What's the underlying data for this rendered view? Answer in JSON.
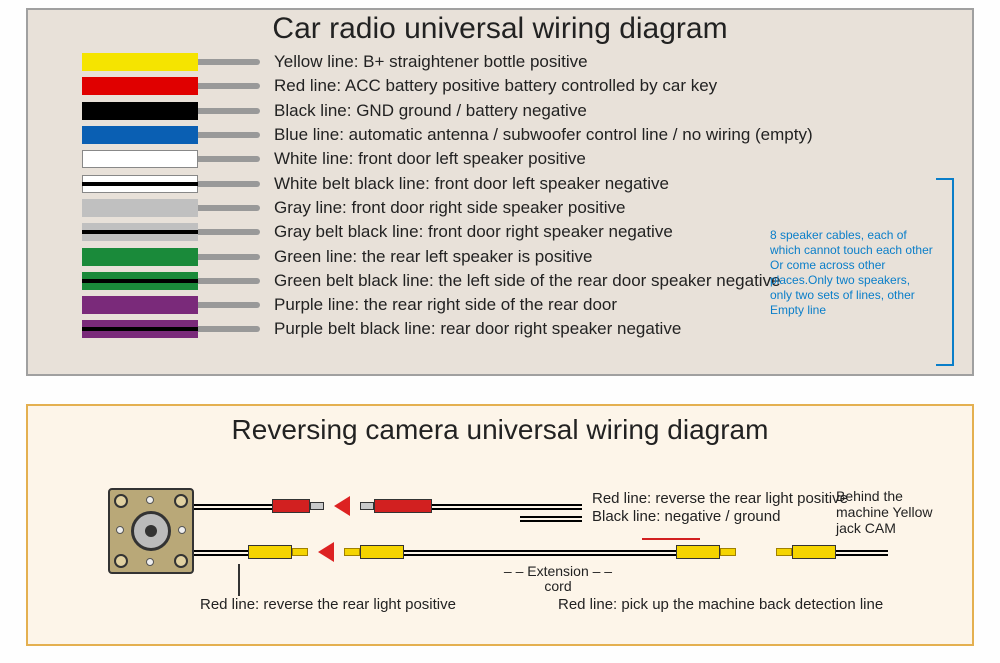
{
  "top": {
    "title": "Car radio universal wiring diagram",
    "border_color": "#a0a0a0",
    "background_color": "#e8e1d9",
    "wires": [
      {
        "color": "#f5e400",
        "stripe": false,
        "label": "Yellow line: B+ straightener bottle positive"
      },
      {
        "color": "#e00000",
        "stripe": false,
        "label": "Red line: ACC battery positive battery controlled by car key"
      },
      {
        "color": "#000000",
        "stripe": false,
        "label": "Black line: GND ground / battery negative"
      },
      {
        "color": "#0a5fb3",
        "stripe": false,
        "label": "Blue line: automatic antenna / subwoofer control line / no wiring (empty)"
      },
      {
        "color": "#ffffff",
        "stripe": false,
        "label": "White line: front door left speaker positive"
      },
      {
        "color": "#ffffff",
        "stripe": true,
        "label": "White belt black line: front door left speaker negative"
      },
      {
        "color": "#c0c0c0",
        "stripe": false,
        "label": "Gray line: front door right side speaker positive"
      },
      {
        "color": "#c0c0c0",
        "stripe": true,
        "label": "Gray belt black line: front door right speaker negative"
      },
      {
        "color": "#1a8a3a",
        "stripe": false,
        "label": "Green line: the rear left speaker is positive"
      },
      {
        "color": "#1a8a3a",
        "stripe": true,
        "label": "Green belt black line: the left side of the rear door speaker negative"
      },
      {
        "color": "#7a2a7a",
        "stripe": false,
        "label": "Purple line: the rear right side of the rear door"
      },
      {
        "color": "#7a2a7a",
        "stripe": true,
        "label": "Purple belt black line: rear door right speaker negative"
      }
    ],
    "note": "8 speaker cables, each of which cannot  touch each other Or come across other places.Only two speakers, only two sets of lines, other Empty line",
    "note_color": "#0a7ec9"
  },
  "bottom": {
    "title": "Reversing camera universal wiring diagram",
    "border_color": "#e4b050",
    "background_color": "#fdf5e9",
    "labels": {
      "red_reverse": "Red line: reverse the rear light positive",
      "black_ground": "Black line: negative / ground",
      "behind_machine": "Behind the machine Yellow jack CAM",
      "extension": "– – Extension – –\ncord",
      "cam_red": "Red line: reverse the rear light positive",
      "pick_up": "Red line: pick up the machine back detection line"
    },
    "colors": {
      "red_plug": "#d22020",
      "yellow_plug": "#f5d400",
      "arrow": "#d22020",
      "cable_line": "#000000",
      "camera_body": "#b9a878"
    }
  }
}
